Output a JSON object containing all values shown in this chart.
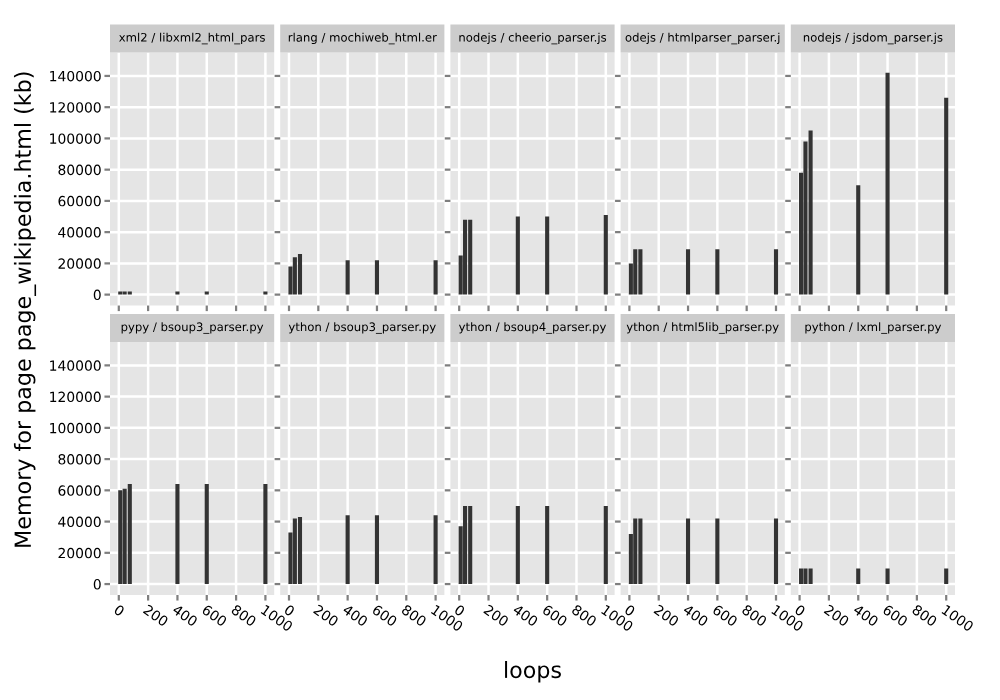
{
  "chart_data": [
    {
      "type": "bar",
      "title": "xml2 / libxml2_html_pars",
      "ylabel": "Memory for page page_wikipedia.html (kb)",
      "x": [
        10,
        40,
        75,
        400,
        600,
        1000
      ],
      "values": [
        2000,
        2000,
        2000,
        2000,
        2000,
        2000
      ],
      "color": "#333333",
      "xlim": [
        -60,
        1060
      ],
      "ylim": [
        -7000,
        155000
      ],
      "xticks": [
        0,
        200,
        400,
        600,
        800,
        1000
      ],
      "yticks": [
        0,
        20000,
        40000,
        60000,
        80000,
        100000,
        120000,
        140000
      ],
      "grid": true,
      "tick_labels": "y"
    },
    {
      "type": "bar",
      "title": "rlang / mochiweb_html.er",
      "x": [
        10,
        40,
        75,
        400,
        600,
        1000
      ],
      "values": [
        18000,
        24000,
        26000,
        22000,
        22000,
        22000
      ],
      "color": "#333333",
      "xlim": [
        -60,
        1060
      ],
      "ylim": [
        -7000,
        155000
      ],
      "xticks": [
        0,
        200,
        400,
        600,
        800,
        1000
      ],
      "yticks": [
        0,
        20000,
        40000,
        60000,
        80000,
        100000,
        120000,
        140000
      ],
      "grid": true,
      "tick_labels": false
    },
    {
      "type": "bar",
      "title": "nodejs / cheerio_parser.js",
      "x": [
        10,
        40,
        75,
        400,
        600,
        1000
      ],
      "values": [
        25000,
        48000,
        48000,
        50000,
        50000,
        51000
      ],
      "color": "#333333",
      "xlim": [
        -60,
        1060
      ],
      "ylim": [
        -7000,
        155000
      ],
      "xticks": [
        0,
        200,
        400,
        600,
        800,
        1000
      ],
      "yticks": [
        0,
        20000,
        40000,
        60000,
        80000,
        100000,
        120000,
        140000
      ],
      "grid": true,
      "tick_labels": false
    },
    {
      "type": "bar",
      "title": "odejs / htmlparser_parser.j",
      "x": [
        10,
        40,
        75,
        400,
        600,
        1000
      ],
      "values": [
        20000,
        29000,
        29000,
        29000,
        29000,
        29000
      ],
      "color": "#333333",
      "xlim": [
        -60,
        1060
      ],
      "ylim": [
        -7000,
        155000
      ],
      "xticks": [
        0,
        200,
        400,
        600,
        800,
        1000
      ],
      "yticks": [
        0,
        20000,
        40000,
        60000,
        80000,
        100000,
        120000,
        140000
      ],
      "grid": true,
      "tick_labels": false
    },
    {
      "type": "bar",
      "title": "nodejs / jsdom_parser.js",
      "x": [
        10,
        40,
        75,
        400,
        600,
        1000
      ],
      "values": [
        78000,
        98000,
        105000,
        70000,
        142000,
        126000
      ],
      "color": "#333333",
      "xlim": [
        -60,
        1060
      ],
      "ylim": [
        -7000,
        155000
      ],
      "xticks": [
        0,
        200,
        400,
        600,
        800,
        1000
      ],
      "yticks": [
        0,
        20000,
        40000,
        60000,
        80000,
        100000,
        120000,
        140000
      ],
      "grid": true,
      "tick_labels": false
    },
    {
      "type": "bar",
      "title": "pypy / bsoup3_parser.py",
      "x": [
        10,
        40,
        75,
        400,
        600,
        1000
      ],
      "values": [
        60000,
        61000,
        64000,
        64000,
        64000,
        64000
      ],
      "color": "#333333",
      "xlim": [
        -60,
        1060
      ],
      "ylim": [
        -7000,
        155000
      ],
      "xticks": [
        0,
        200,
        400,
        600,
        800,
        1000
      ],
      "yticks": [
        0,
        20000,
        40000,
        60000,
        80000,
        100000,
        120000,
        140000
      ],
      "grid": true
    },
    {
      "type": "bar",
      "title": "ython / bsoup3_parser.py",
      "x": [
        10,
        40,
        75,
        400,
        600,
        1000
      ],
      "values": [
        33000,
        42000,
        43000,
        44000,
        44000,
        44000
      ],
      "color": "#333333",
      "xlim": [
        -60,
        1060
      ],
      "ylim": [
        -7000,
        155000
      ],
      "xticks": [
        0,
        200,
        400,
        600,
        800,
        1000
      ],
      "yticks": [
        0,
        20000,
        40000,
        60000,
        80000,
        100000,
        120000,
        140000
      ],
      "grid": true,
      "tick_labels": "x"
    },
    {
      "type": "bar",
      "title": "ython / bsoup4_parser.py",
      "xlabel": "loops",
      "x": [
        10,
        40,
        75,
        400,
        600,
        1000
      ],
      "values": [
        37000,
        50000,
        50000,
        50000,
        50000,
        50000
      ],
      "color": "#333333",
      "xlim": [
        -60,
        1060
      ],
      "ylim": [
        -7000,
        155000
      ],
      "xticks": [
        0,
        200,
        400,
        600,
        800,
        1000
      ],
      "yticks": [
        0,
        20000,
        40000,
        60000,
        80000,
        100000,
        120000,
        140000
      ],
      "grid": true,
      "tick_labels": "x"
    },
    {
      "type": "bar",
      "title": "ython / html5lib_parser.py",
      "x": [
        10,
        40,
        75,
        400,
        600,
        1000
      ],
      "values": [
        32000,
        42000,
        42000,
        42000,
        42000,
        42000
      ],
      "color": "#333333",
      "xlim": [
        -60,
        1060
      ],
      "ylim": [
        -7000,
        155000
      ],
      "xticks": [
        0,
        200,
        400,
        600,
        800,
        1000
      ],
      "yticks": [
        0,
        20000,
        40000,
        60000,
        80000,
        100000,
        120000,
        140000
      ],
      "grid": true,
      "tick_labels": "x"
    },
    {
      "type": "bar",
      "title": "python / lxml_parser.py",
      "x": [
        10,
        40,
        75,
        400,
        600,
        1000
      ],
      "values": [
        10000,
        10000,
        10000,
        10000,
        10000,
        10000
      ],
      "color": "#333333",
      "xlim": [
        -60,
        1060
      ],
      "ylim": [
        -7000,
        155000
      ],
      "xticks": [
        0,
        200,
        400,
        600,
        800,
        1000
      ],
      "yticks": [
        0,
        20000,
        40000,
        60000,
        80000,
        100000,
        120000,
        140000
      ],
      "grid": true,
      "tick_labels": "x"
    }
  ]
}
